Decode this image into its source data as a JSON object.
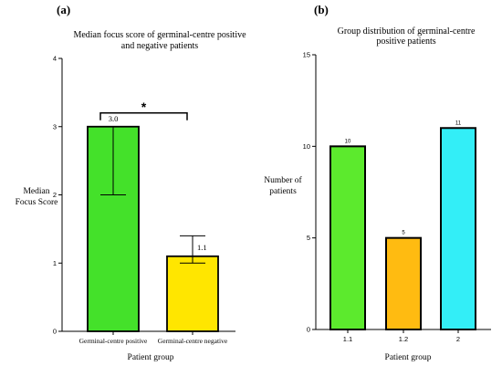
{
  "chart_data": [
    {
      "type": "bar",
      "panel_label": "(a)",
      "title_lines": [
        "Median focus score of germinal-centre positive",
        "and negative patients"
      ],
      "xlabel": "Patient group",
      "ylabel_lines": [
        "Median",
        "Focus Score"
      ],
      "ylim": [
        0,
        4
      ],
      "yticks": [
        0,
        1,
        2,
        3,
        4
      ],
      "categories": [
        "Germinal-centre positive",
        "Germinal-centre negative"
      ],
      "values": [
        3.0,
        1.1
      ],
      "value_labels": [
        "3.0",
        "1.1"
      ],
      "error_low": [
        2.0,
        1.0
      ],
      "error_high": [
        3.0,
        1.4
      ],
      "colors": [
        "#44e12a",
        "#ffe600"
      ],
      "significance": "*",
      "grid": false,
      "legend": "none"
    },
    {
      "type": "bar",
      "panel_label": "(b)",
      "title_lines": [
        "Group distribution of germinal-centre",
        "positive patients"
      ],
      "xlabel": "Patient group",
      "ylabel_lines": [
        "Number of",
        "patients"
      ],
      "ylim": [
        0,
        15
      ],
      "yticks": [
        0,
        5,
        10,
        15
      ],
      "categories": [
        "1.1",
        "1.2",
        "2"
      ],
      "values": [
        10,
        5,
        11
      ],
      "value_labels": [
        "10",
        "5",
        "11"
      ],
      "colors": [
        "#5cea2d",
        "#ffbb11",
        "#33eef7"
      ],
      "grid": false,
      "legend": "none"
    }
  ]
}
